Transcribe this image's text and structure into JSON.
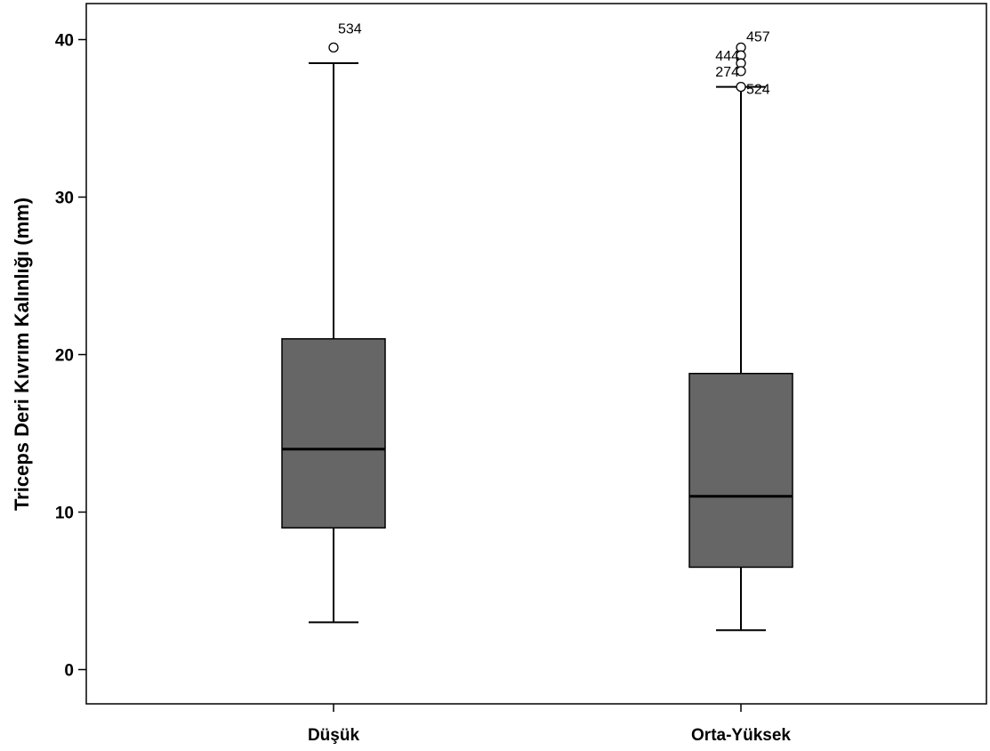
{
  "chart_data": {
    "type": "box",
    "ylabel": "Triceps Deri Kıvrım Kalınlığı (mm)",
    "xlabel": "",
    "ylim": [
      -2,
      42.5
    ],
    "yticks": [
      0,
      10,
      20,
      30,
      40
    ],
    "ytick_labels": [
      "0",
      "10",
      "20",
      "30",
      "40"
    ],
    "categories": [
      "Düşük",
      "Orta-Yüksek"
    ],
    "box_color": "#666666",
    "series": [
      {
        "category": "Düşük",
        "whisker_low": 3,
        "q1": 9,
        "median": 14,
        "q3": 21,
        "whisker_high": 38.5,
        "outliers": [
          {
            "value": 39.5,
            "label": "534"
          }
        ]
      },
      {
        "category": "Orta-Yüksek",
        "whisker_low": 2.5,
        "q1": 6.5,
        "median": 11,
        "q3": 18.8,
        "whisker_high": 37,
        "outliers": [
          {
            "value": 39.5,
            "label": "457"
          },
          {
            "value": 39,
            "label": "444"
          },
          {
            "value": 38.5,
            "label": ""
          },
          {
            "value": 38,
            "label": "274"
          },
          {
            "value": 37,
            "label": "524"
          }
        ]
      }
    ]
  }
}
